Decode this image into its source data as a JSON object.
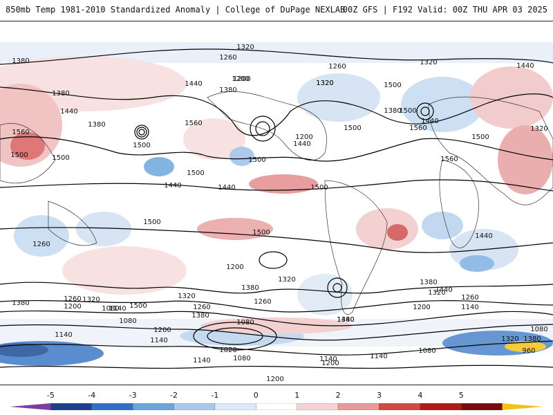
{
  "header": {
    "title": "850mb Temp 1981-2010 Standardized Anomaly | College of DuPage NEXLAB",
    "run_info": "00Z GFS | F192 Valid: 00Z THU APR 03 2025"
  },
  "colorbar": {
    "ticks": [
      "-5",
      "-4",
      "-3",
      "-2",
      "-1",
      "0",
      "1",
      "2",
      "3",
      "4",
      "5"
    ],
    "colors": [
      "#7b3fa0",
      "#1f3f8c",
      "#2f6fc4",
      "#6aa4dc",
      "#a9c9ec",
      "#dce9f7",
      "#ffffff",
      "#f6d3d3",
      "#e79a9a",
      "#d04848",
      "#b01a1a",
      "#7a0c0c",
      "#f2c21b"
    ]
  },
  "map": {
    "contour_labels": [
      "1320",
      "1380",
      "1260",
      "1200",
      "1320",
      "1380",
      "1440",
      "1260",
      "1200",
      "1320",
      "1440",
      "1380",
      "1500",
      "1440",
      "1500",
      "1560",
      "1440",
      "1380",
      "1560",
      "1500",
      "1500",
      "1500",
      "1500",
      "1500",
      "1440",
      "1560",
      "1500",
      "1320",
      "1500",
      "1500",
      "1500",
      "1440",
      "1440",
      "1560",
      "1380",
      "1320",
      "1260",
      "1200",
      "1500",
      "1440",
      "1380",
      "1260",
      "1320",
      "1380",
      "1320",
      "1260",
      "1500",
      "1200",
      "1080",
      "1140",
      "1380",
      "1260",
      "1200",
      "1140",
      "1080",
      "1140",
      "1200",
      "1320",
      "1440",
      "1380",
      "1080",
      "1020",
      "1140",
      "1080",
      "1200",
      "960",
      "1080",
      "1140",
      "1200",
      "1140",
      "1200",
      "1320",
      "1260",
      "1380",
      "1440",
      "1380",
      "1140",
      "1080",
      "1320"
    ]
  }
}
